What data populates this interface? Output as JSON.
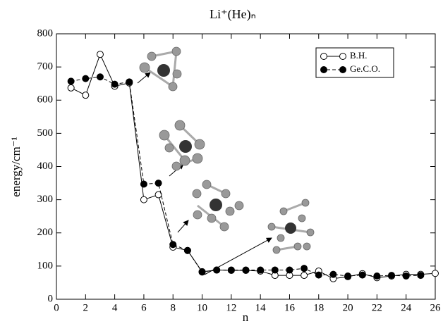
{
  "chart_data": {
    "type": "line",
    "title": "Li⁺(He)ₙ",
    "x_label": "n",
    "y_label": "energy/cm⁻¹",
    "x": [
      1,
      2,
      3,
      4,
      5,
      6,
      7,
      8,
      9,
      10,
      11,
      12,
      13,
      14,
      15,
      16,
      17,
      18,
      19,
      20,
      21,
      22,
      23,
      24,
      25,
      26
    ],
    "series": [
      {
        "name": "B.H.",
        "color": "#000000",
        "marker": "open",
        "line_style": "solid",
        "values": [
          637,
          615,
          738,
          642,
          652,
          300,
          315,
          157,
          147,
          83,
          88,
          87,
          87,
          85,
          72,
          72,
          72,
          85,
          62,
          68,
          77,
          65,
          70,
          75,
          75,
          78
        ]
      },
      {
        "name": "Ge.C.O.",
        "color": "#000000",
        "marker": "filled",
        "line_style": "dashed",
        "values": [
          657,
          665,
          670,
          648,
          655,
          347,
          350,
          165,
          147,
          82,
          88,
          88,
          88,
          88,
          88,
          88,
          93,
          73,
          75,
          70,
          73,
          70,
          72,
          70,
          72,
          null
        ]
      }
    ],
    "xlim": [
      0,
      26
    ],
    "xticks": [
      0,
      2,
      4,
      6,
      8,
      10,
      12,
      14,
      16,
      18,
      20,
      22,
      24,
      26
    ],
    "ylim": [
      0,
      800
    ],
    "yticks": [
      0,
      100,
      200,
      300,
      400,
      500,
      600,
      700,
      800
    ],
    "legend": "upper right"
  }
}
